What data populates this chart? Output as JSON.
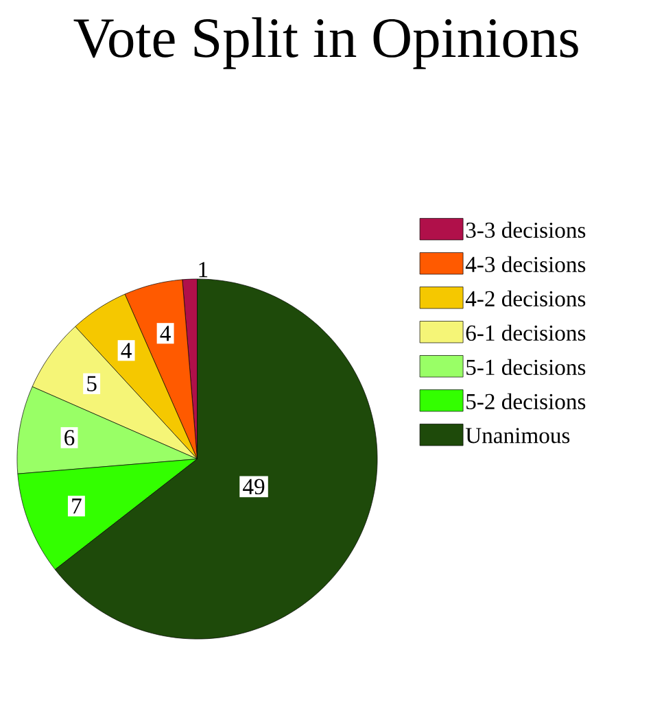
{
  "chart_data": {
    "type": "pie",
    "title": "Vote Split in Opinions",
    "categories": [
      "3-3 decisions",
      "4-3 decisions",
      "4-2 decisions",
      "6-1 decisions",
      "5-1 decisions",
      "5-2 decisions",
      "Unanimous"
    ],
    "values": [
      1,
      4,
      4,
      5,
      6,
      7,
      49
    ],
    "colors": [
      "#b0104a",
      "#ff5a00",
      "#f5c800",
      "#f5f577",
      "#99ff66",
      "#33ff00",
      "#1e4a0a"
    ],
    "data_labels": true,
    "legend": "right"
  }
}
